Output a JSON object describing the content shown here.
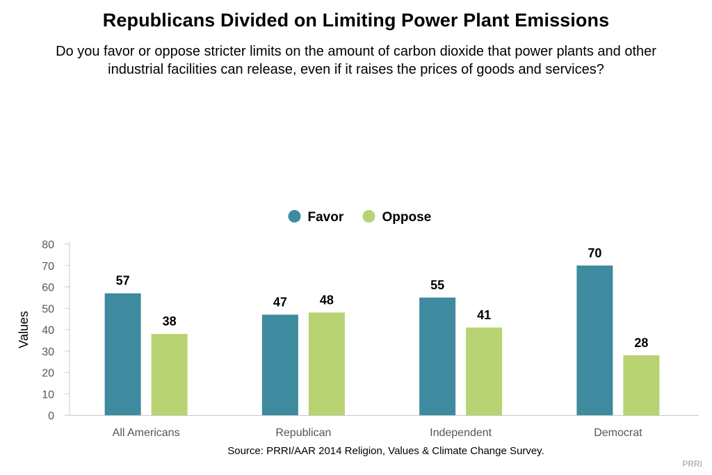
{
  "chart_data": {
    "type": "bar",
    "title": "Republicans Divided on Limiting Power Plant Emissions",
    "subtitle": "Do you favor or oppose stricter limits on the amount of carbon dioxide that power plants and other industrial facilities can release, even if it raises the prices of goods and services?",
    "xlabel": "",
    "ylabel": "Values",
    "ylim": [
      0,
      80
    ],
    "yticks": [
      0,
      10,
      20,
      30,
      40,
      50,
      60,
      70,
      80
    ],
    "categories": [
      "All Americans",
      "Republican",
      "Independent",
      "Democrat"
    ],
    "series": [
      {
        "name": "Favor",
        "color": "#3e8a9e",
        "values": [
          57,
          47,
          55,
          70
        ]
      },
      {
        "name": "Oppose",
        "color": "#b8d372",
        "values": [
          38,
          48,
          41,
          28
        ]
      }
    ],
    "data_labels": true,
    "legend_position": "top-center",
    "grid": false
  },
  "source": "Source: PRRI/AAR 2014 Religion, Values & Climate Change Survey.",
  "credit": "PRRI"
}
